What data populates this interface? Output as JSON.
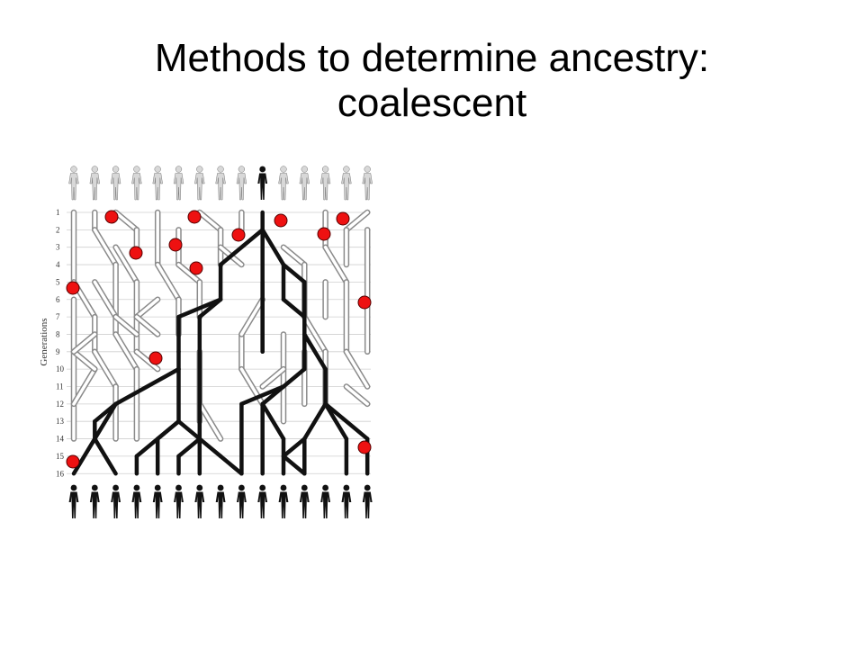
{
  "slide": {
    "title_line1": "Methods to determine ancestry:",
    "title_line2": "coalescent"
  },
  "figure": {
    "y_axis_label": "Generations",
    "generation_labels": [
      "1",
      "2",
      "3",
      "4",
      "5",
      "6",
      "7",
      "8",
      "9",
      "10",
      "11",
      "12",
      "13",
      "14",
      "15",
      "16"
    ],
    "top_individuals": 15,
    "bottom_individuals": 15,
    "colors": {
      "lineage_black": "#111111",
      "lineage_gray_outline": "#8a8a8a",
      "lineage_gray_fill": "#ffffff",
      "gridline": "#cfcfcf",
      "extinct_marker": "#ee1111",
      "marker_outline": "#550000",
      "person_gray": "#d8d8d8",
      "person_black": "#111111"
    }
  }
}
